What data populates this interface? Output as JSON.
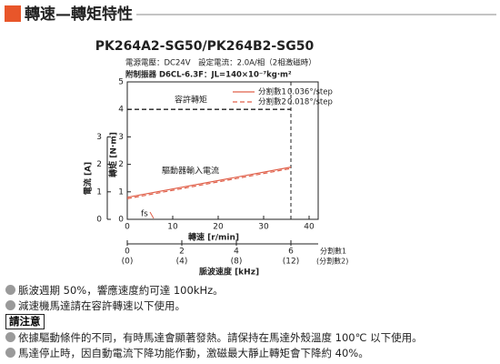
{
  "header": {
    "title": "轉速—轉矩特性"
  },
  "chart_data": {
    "type": "line",
    "title": "PK264A2-SG50/PK264B2-SG50",
    "subtitle": [
      "電源電壓：DC24V　設定電流：2.0A/相（2相激磁時）",
      "附制振器 D6CL-6.3F：JL=140×10⁻⁷kg·m²"
    ],
    "xlabel": "轉速 [r/min]",
    "xlim": [
      0,
      42
    ],
    "xticks": [
      0,
      10,
      20,
      30,
      40
    ],
    "ylabel": "轉矩 [N·m]",
    "ylim": [
      0,
      5
    ],
    "yticks": [
      0,
      1,
      2,
      3,
      4,
      5
    ],
    "y2label": "電流 [A]",
    "y2lim": [
      0,
      5
    ],
    "y2ticks": [
      0,
      1,
      2,
      3
    ],
    "x2label": "脈波速度 [kHz]",
    "x2lim": [
      0,
      7
    ],
    "x2ticks": [
      0,
      2,
      4,
      6
    ],
    "x2name": "分割數1",
    "x3lim": [
      0,
      14
    ],
    "x3ticks": [
      {
        "value": 0,
        "label": "(0)"
      },
      {
        "value": 4,
        "label": "(4)"
      },
      {
        "value": 8,
        "label": "(8)"
      },
      {
        "value": 12,
        "label": "(12)"
      }
    ],
    "x3name": "(分割數2)",
    "x": [
      0,
      36
    ],
    "series": [
      {
        "name": "分割數1",
        "step": "0.036°/step",
        "color": "#e0604a",
        "dash": false,
        "axis": "y2",
        "values": [
          0.8,
          1.9
        ]
      },
      {
        "name": "分割數2",
        "step": "0.018°/step",
        "color": "#e0604a",
        "dash": true,
        "axis": "y2",
        "values": [
          0.75,
          1.85
        ]
      }
    ],
    "reference": {
      "label": "容許轉矩",
      "y": 4,
      "x": 36
    },
    "annotations": {
      "current": "驅動器輸入電流",
      "fs": "fs"
    },
    "fs_x": 5
  },
  "notes": [
    "脈波週期 50%，響應速度約可達 100kHz。",
    "減速機馬達請在容許轉速以下使用。"
  ],
  "warning": {
    "title": "請注意",
    "items": [
      "依據驅動條件的不同，有時馬達會顯著發熱。請保持在馬達外殼溫度 100℃ 以下使用。",
      "馬達停止時，因自動電流下降功能作動，激磁最大靜止轉矩會下降約 40%。"
    ]
  }
}
